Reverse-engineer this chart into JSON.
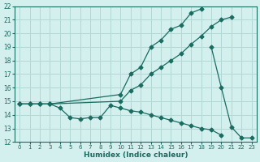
{
  "xlabel": "Humidex (Indice chaleur)",
  "bg_color": "#d4f0ee",
  "grid_color": "#b0d8d4",
  "line_color": "#1a6b60",
  "xlim": [
    -0.5,
    23.5
  ],
  "ylim": [
    12,
    22
  ],
  "xticks": [
    0,
    1,
    2,
    3,
    4,
    5,
    6,
    7,
    8,
    9,
    10,
    11,
    12,
    13,
    14,
    15,
    16,
    17,
    18,
    19,
    20,
    21,
    22,
    23
  ],
  "yticks": [
    12,
    13,
    14,
    15,
    16,
    17,
    18,
    19,
    20,
    21,
    22
  ],
  "series": [
    {
      "x": [
        0,
        1,
        2,
        3,
        10,
        11,
        12,
        13,
        14,
        15,
        16,
        17,
        18
      ],
      "y": [
        14.8,
        14.8,
        14.8,
        14.8,
        15.5,
        17.0,
        17.5,
        19.0,
        19.5,
        20.3,
        20.6,
        21.5,
        21.8
      ],
      "marker": "D",
      "markersize": 2.5
    },
    {
      "x": [
        0,
        1,
        2,
        3,
        10,
        11,
        12,
        13,
        14,
        15,
        16,
        17,
        18,
        19,
        20,
        21
      ],
      "y": [
        14.8,
        14.8,
        14.8,
        14.8,
        15.0,
        15.8,
        16.2,
        17.0,
        17.5,
        18.0,
        18.5,
        19.2,
        19.8,
        20.5,
        21.0,
        21.2
      ],
      "marker": "D",
      "markersize": 2.5
    },
    {
      "x": [
        0,
        1,
        2,
        3,
        4,
        5,
        6,
        7,
        8,
        9,
        10,
        11,
        12,
        13,
        14,
        15,
        16,
        17,
        18,
        19,
        20,
        21,
        22,
        23
      ],
      "y": [
        14.8,
        14.8,
        14.8,
        14.8,
        14.5,
        13.8,
        13.7,
        13.8,
        13.8,
        14.7,
        14.5,
        14.3,
        14.2,
        14.0,
        13.8,
        13.6,
        13.4,
        13.2,
        13.0,
        12.9,
        12.5,
        null,
        null,
        null
      ],
      "marker": "D",
      "markersize": 2.5
    },
    {
      "x": [
        19,
        20,
        21,
        22,
        23
      ],
      "y": [
        19.0,
        16.0,
        13.1,
        12.3,
        12.3
      ],
      "marker": "D",
      "markersize": 2.5
    }
  ]
}
